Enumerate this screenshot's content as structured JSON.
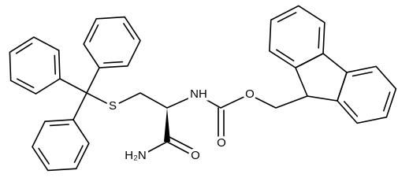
{
  "labels": {
    "sulfur": "S",
    "amine": "NH",
    "carbonyl_oxygen": "O",
    "ester_oxygen": "O",
    "amide_oxygen": "O",
    "amide_nitrogen": "H₂N"
  }
}
